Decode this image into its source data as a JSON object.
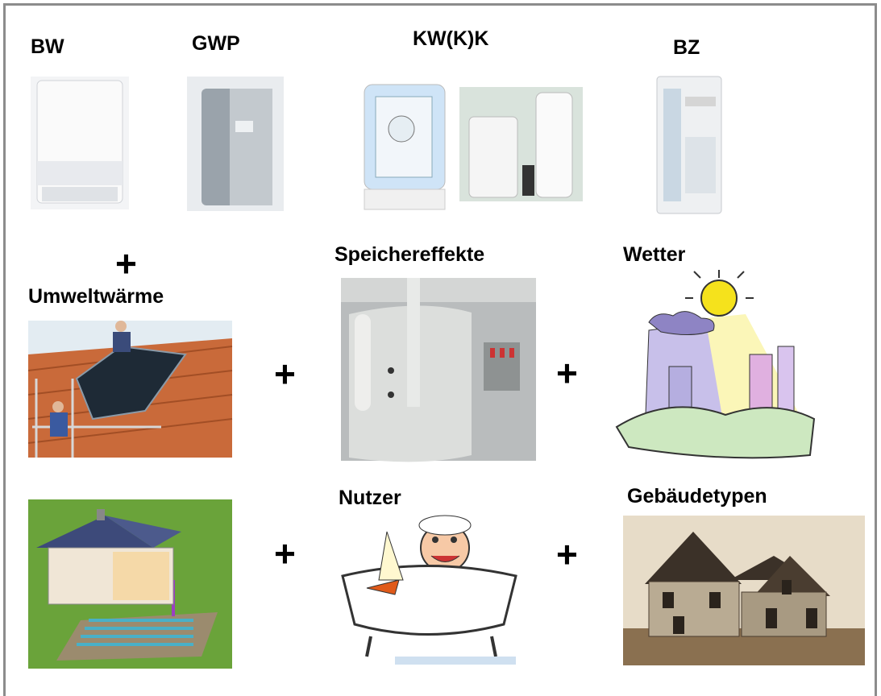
{
  "header_labels": [
    "BW",
    "GWP",
    "KW(K)K",
    "BZ"
  ],
  "section_labels": [
    "Umweltwärme",
    "Speichereffekte",
    "Wetter",
    "Nutzer",
    "Gebäudetypen"
  ],
  "plus_signs": [
    "+",
    "+",
    "+",
    "+",
    "+"
  ]
}
